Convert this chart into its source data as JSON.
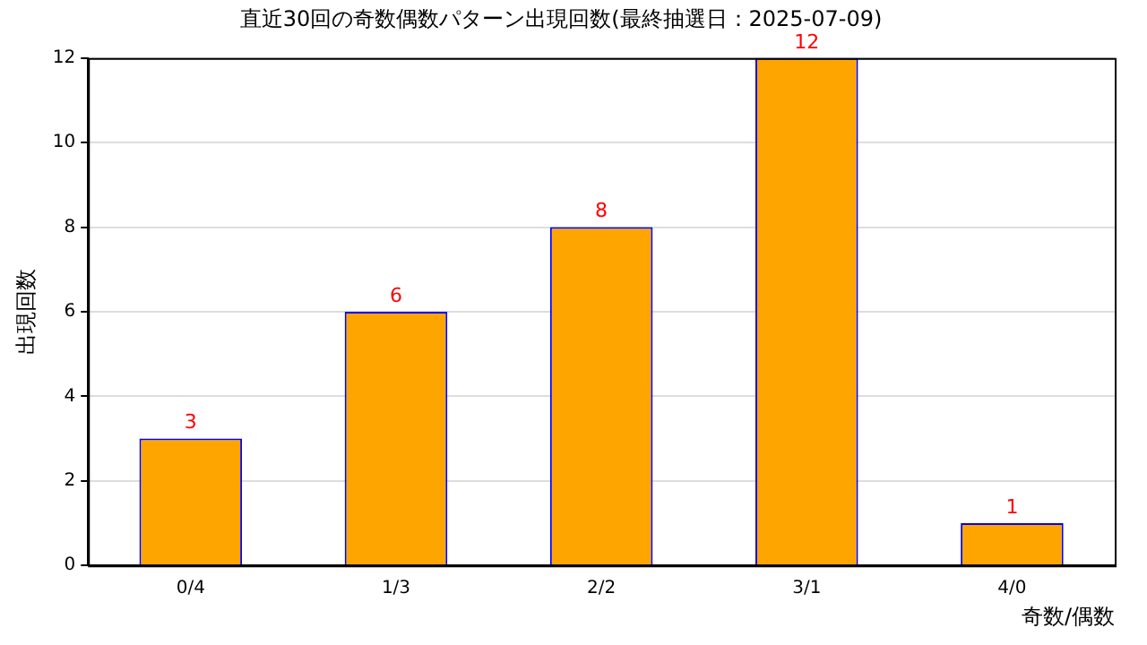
{
  "chart_data": {
    "type": "bar",
    "title": "直近30回の奇数偶数パターン出現回数(最終抽選日：2025-07-09)",
    "xlabel": "奇数/偶数",
    "ylabel": "出現回数",
    "categories": [
      "0/4",
      "1/3",
      "2/2",
      "3/1",
      "4/0"
    ],
    "values": [
      3,
      6,
      8,
      12,
      1
    ],
    "color": "#ffa500",
    "ylim": [
      0,
      12
    ],
    "yticks": [
      0,
      2,
      4,
      6,
      8,
      10,
      12
    ],
    "grid": "y",
    "data_labels": true,
    "legend": false
  }
}
